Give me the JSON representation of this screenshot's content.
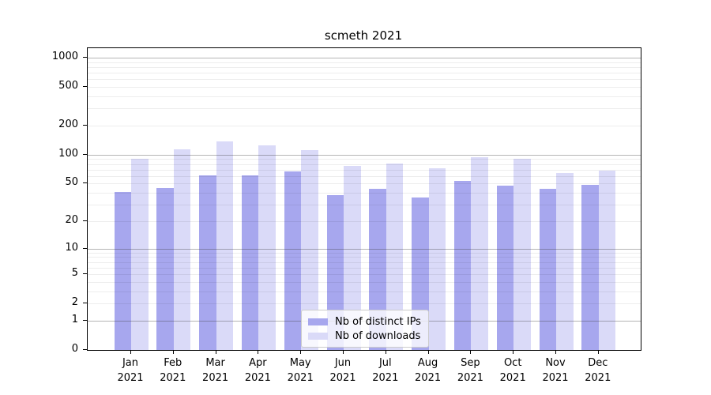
{
  "chart_data": {
    "type": "bar",
    "title": "scmeth 2021",
    "year": "2021",
    "categories": [
      "Jan 2021",
      "Feb 2021",
      "Mar 2021",
      "Apr 2021",
      "May 2021",
      "Jun 2021",
      "Jul 2021",
      "Aug 2021",
      "Sep 2021",
      "Oct 2021",
      "Nov 2021",
      "Dec 2021"
    ],
    "series": [
      {
        "name": "Nb of distinct IPs",
        "color": "#a7a7ee",
        "values": [
          41,
          45,
          61,
          61,
          67,
          38,
          44,
          36,
          53,
          48,
          44,
          49
        ]
      },
      {
        "name": "Nb of downloads",
        "color": "#dadaf8",
        "values": [
          90,
          113,
          138,
          125,
          112,
          77,
          81,
          72,
          95,
          91,
          65,
          68
        ]
      }
    ],
    "yscale": "log1p",
    "y_ticks": [
      0,
      1,
      2,
      5,
      10,
      20,
      50,
      100,
      200,
      500,
      1000
    ],
    "y_major_gridlines": [
      1,
      10,
      100,
      1000
    ],
    "ylim": [
      0,
      1250
    ],
    "xlabel": "",
    "ylabel": "",
    "grid": true,
    "legend_position": "bottom-center"
  }
}
